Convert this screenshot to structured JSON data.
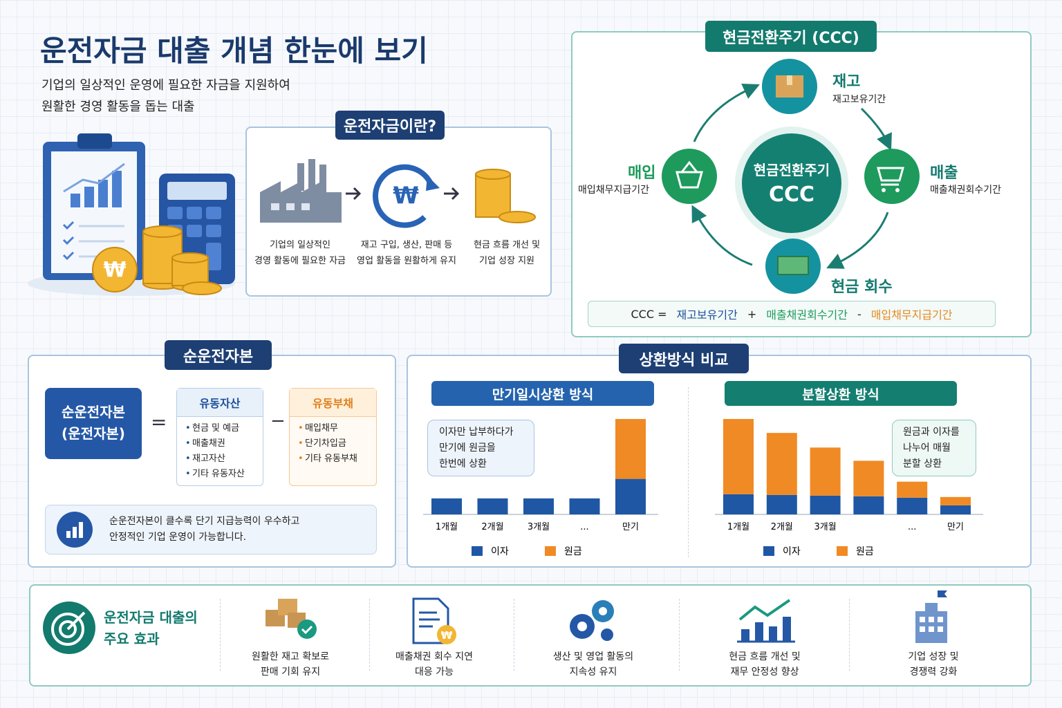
{
  "header": {
    "title": "운전자금 대출 개념 한눈에 보기",
    "subtitle": [
      "기업의 일상적인 운영에 필요한 자금을 지원하여",
      "원활한 경영 활동을 돕는 대출"
    ]
  },
  "what_is": {
    "title": "운전자금이란?",
    "steps": [
      [
        "기업의 일상적인",
        "경영 활동에 필요한 자금"
      ],
      [
        "재고 구입, 생산, 판매 등",
        "영업 활동을 원활하게 유지"
      ],
      [
        "현금 흐름 개선 및",
        "기업 성장 지원"
      ]
    ]
  },
  "ccc": {
    "title": "현금전환주기 (CCC)",
    "center": [
      "현금전환주기",
      "CCC"
    ],
    "nodes": {
      "inventory": {
        "name": "재고",
        "desc": "재고보유기간"
      },
      "sales": {
        "name": "매출",
        "desc": "매출채권회수기간"
      },
      "collection": {
        "name": "현금 회수"
      },
      "purchase": {
        "name": "매입",
        "desc": "매입채무지급기간"
      }
    },
    "formula": [
      "CCC =",
      "재고보유기간",
      "+",
      "매출채권회수기간",
      "-",
      "매입채무지급기간"
    ]
  },
  "nwc": {
    "title": "순운전자본",
    "label": [
      "순운전자본",
      "(운전자본)"
    ],
    "equals": "=",
    "minus": "−",
    "assets": {
      "title": "유동자산",
      "items": [
        "현금 및 예금",
        "매출채권",
        "재고자산",
        "기타 유동자산"
      ]
    },
    "liabilities": {
      "title": "유동부채",
      "items": [
        "매입채무",
        "단기차입금",
        "기타 유동부채"
      ]
    },
    "note": [
      "순운전자본이 클수록 단기 지급능력이 우수하고",
      "안정적인 기업 운영이 가능합니다."
    ]
  },
  "repayment": {
    "title": "상환방식 비교",
    "charts": [
      {
        "type": "bar",
        "stacked": true,
        "title": "만기일시상환 방식",
        "callout": [
          "이자만 납부하다가",
          "만기에 원금을",
          "한번에 상환"
        ],
        "categories": [
          "1개월",
          "2개월",
          "3개월",
          "...",
          "만기"
        ],
        "series": [
          {
            "name": "이자",
            "color": "#1f57a4",
            "values": [
              23,
              23,
              23,
              23,
              51
            ]
          },
          {
            "name": "원금",
            "color": "#f08a24",
            "values": [
              0,
              0,
              0,
              0,
              86
            ]
          }
        ]
      },
      {
        "type": "bar",
        "stacked": true,
        "title": "분할상환 방식",
        "callout": [
          "원금과 이자를",
          "나누어 매월",
          "분할 상환"
        ],
        "categories": [
          "1개월",
          "2개월",
          "3개월",
          null,
          "...",
          "만기"
        ],
        "series": [
          {
            "name": "이자",
            "color": "#1f57a4",
            "values": [
              29,
              28,
              27,
              26,
              24,
              13
            ]
          },
          {
            "name": "원금",
            "color": "#f08a24",
            "values": [
              108,
              89,
              69,
              51,
              23,
              12
            ]
          }
        ]
      }
    ]
  },
  "effects": {
    "title": [
      "운전자금 대출의",
      "주요 효과"
    ],
    "items": [
      [
        "원활한 재고 확보로",
        "판매 기회 유지"
      ],
      [
        "매출채권 회수 지연",
        "대응 가능"
      ],
      [
        "생산 및 영업 활동의",
        "지속성 유지"
      ],
      [
        "현금 흐름 개선 및",
        "재무 안정성 향상"
      ],
      [
        "기업 성장 및",
        "경쟁력 강화"
      ]
    ]
  }
}
